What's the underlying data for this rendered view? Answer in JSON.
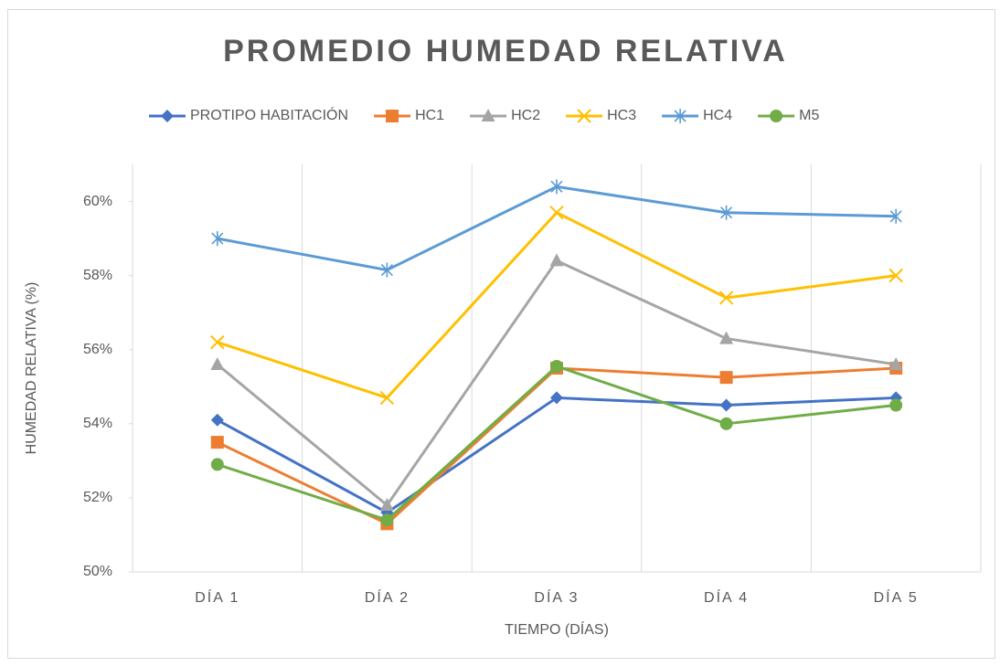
{
  "chart_data": {
    "type": "line",
    "title": "PROMEDIO HUMEDAD RELATIVA",
    "x_label": "TIEMPO (DÍAS)",
    "y_label": "HUMEDAD RELATIVA (%)",
    "categories": [
      "DÍA 1",
      "DÍA 2",
      "DÍA 3",
      "DÍA 4",
      "DÍA 5"
    ],
    "series": [
      {
        "name": "PROTIPO HABITACIÓN",
        "color": "#4472c4",
        "marker": "diamond",
        "values": [
          54.1,
          51.6,
          54.7,
          54.5,
          54.7
        ]
      },
      {
        "name": "HC1",
        "color": "#ed7d31",
        "marker": "square",
        "values": [
          53.5,
          51.3,
          55.5,
          55.25,
          55.5
        ]
      },
      {
        "name": "HC2",
        "color": "#a5a5a5",
        "marker": "triangle",
        "values": [
          55.6,
          51.8,
          58.4,
          56.3,
          55.6
        ]
      },
      {
        "name": "HC3",
        "color": "#ffc000",
        "marker": "x",
        "values": [
          56.2,
          54.7,
          59.7,
          57.4,
          58.0
        ]
      },
      {
        "name": "HC4",
        "color": "#5b9bd5",
        "marker": "star",
        "values": [
          59.0,
          58.15,
          60.4,
          59.7,
          59.6
        ]
      },
      {
        "name": "M5",
        "color": "#70ad47",
        "marker": "circle",
        "values": [
          52.9,
          51.4,
          55.55,
          54.0,
          54.5
        ]
      }
    ],
    "ylim": [
      50,
      61
    ],
    "yticks": [
      {
        "value": 50,
        "label": "50%"
      },
      {
        "value": 52,
        "label": "52%"
      },
      {
        "value": 54,
        "label": "54%"
      },
      {
        "value": 56,
        "label": "56%"
      },
      {
        "value": 58,
        "label": "58%"
      },
      {
        "value": 60,
        "label": "60%"
      }
    ],
    "legend": "top",
    "grid": "vertical"
  }
}
